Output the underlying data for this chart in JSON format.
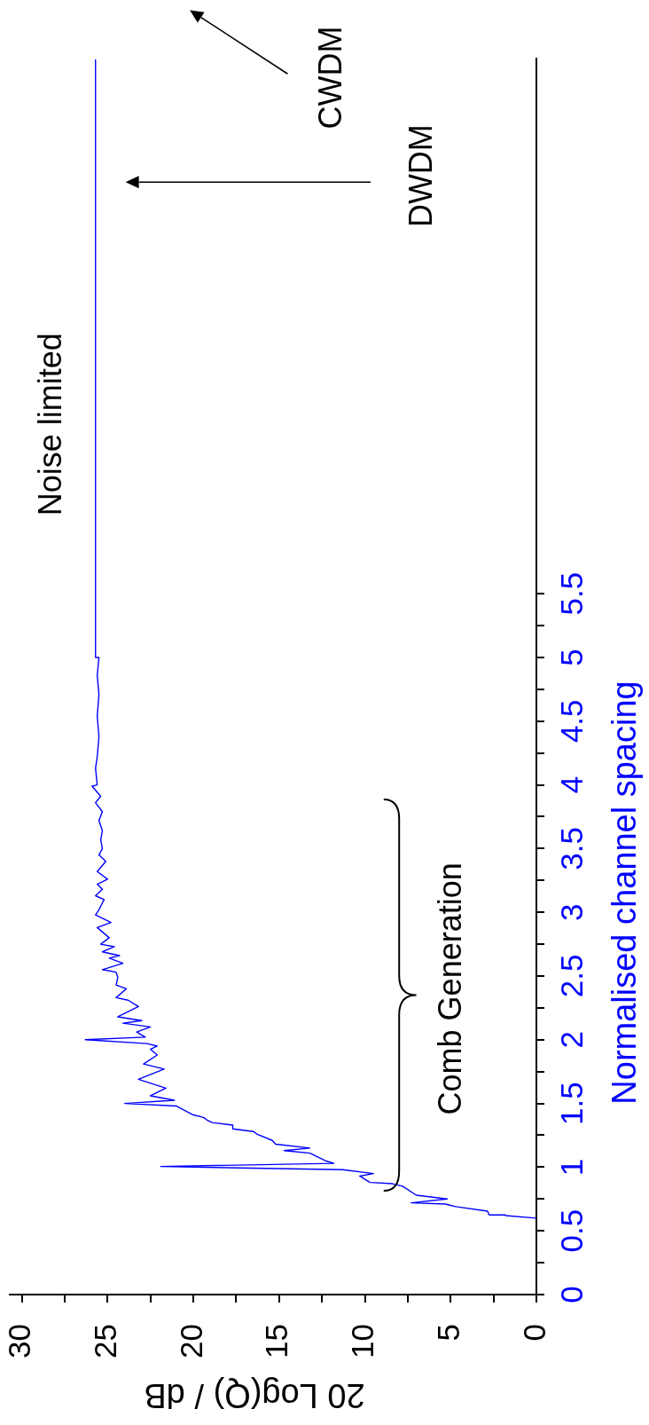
{
  "chart_data": {
    "type": "line",
    "xlabel": "20 Log(Q) / dB",
    "ylabel": "Normalised channel spacing",
    "x": [
      0,
      1.8,
      2.75,
      2.85,
      4.7,
      5.3,
      7.3,
      5.2,
      7.0,
      7.8,
      8.4,
      9.7,
      10.3,
      9.5,
      11.3,
      21.9,
      11.8,
      12.3,
      13.2,
      14.7,
      13.2,
      15.2,
      15.4,
      16.3,
      16.5,
      17.7,
      17.7,
      18.9,
      19.2,
      19.4,
      20.0,
      21.0,
      24.0,
      21.1,
      22.5,
      21.6,
      23.2,
      21.7,
      22.9,
      22.1,
      22.5,
      22.1,
      22.7,
      26.3,
      22.8,
      23.3,
      22.5,
      24.1,
      23.0,
      24.4,
      23.2,
      23.8,
      24.5,
      23.9,
      24.5,
      24.4,
      24.5,
      25.3,
      24.1,
      24.9,
      24.3,
      25.3,
      24.6,
      25.4,
      24.9,
      25.6,
      24.8,
      25.7,
      25.5,
      25.2,
      25.7,
      25.3,
      25.6,
      25.0,
      25.6,
      25.1,
      25.5,
      25.3,
      25.4,
      25.3,
      25.5,
      25.3,
      25.7,
      25.4,
      25.9,
      25.6,
      25.7,
      25.6,
      25.5,
      25.6,
      25.5,
      25.6,
      25.5,
      25.7,
      25.7
    ],
    "series": [
      {
        "color": "#0000ff",
        "values": [
          0.6,
          0.62,
          0.625,
          0.655,
          0.69,
          0.71,
          0.72,
          0.75,
          0.78,
          0.85,
          0.87,
          0.88,
          0.93,
          0.95,
          0.98,
          1.005,
          1.03,
          1.05,
          1.11,
          1.13,
          1.15,
          1.18,
          1.21,
          1.26,
          1.28,
          1.3,
          1.33,
          1.35,
          1.37,
          1.39,
          1.41,
          1.48,
          1.5,
          1.525,
          1.56,
          1.62,
          1.69,
          1.77,
          1.81,
          1.88,
          1.925,
          1.95,
          1.97,
          2.0,
          2.02,
          2.06,
          2.1,
          2.13,
          2.15,
          2.18,
          2.26,
          2.31,
          2.33,
          2.4,
          2.43,
          2.49,
          2.53,
          2.55,
          2.6,
          2.64,
          2.66,
          2.69,
          2.73,
          2.75,
          2.8,
          2.88,
          2.92,
          2.98,
          3.02,
          3.1,
          3.13,
          3.18,
          3.22,
          3.26,
          3.32,
          3.4,
          3.45,
          3.5,
          3.57,
          3.64,
          3.72,
          3.79,
          3.86,
          3.91,
          3.99,
          4.0,
          4.13,
          4.22,
          4.38,
          4.54,
          4.71,
          4.86,
          5.0,
          5.0,
          9.69
        ]
      }
    ],
    "xlim": [
      30.7,
      0
    ],
    "ylim": [
      0,
      9.7
    ],
    "xticks": [
      0,
      {
        "value": 2.5,
        "label": null
      },
      5,
      {
        "value": 7.5,
        "label": null
      },
      10,
      {
        "value": 12.5,
        "label": null
      },
      15,
      {
        "value": 17.5,
        "label": null
      },
      20,
      {
        "value": 22.5,
        "label": null
      },
      25,
      {
        "value": 27.5,
        "label": null
      },
      30
    ],
    "yticks": [
      0,
      {
        "value": 0.25,
        "label": null
      },
      0.5,
      {
        "value": 0.75,
        "label": null
      },
      1,
      {
        "value": 1.25,
        "label": null
      },
      1.5,
      {
        "value": 1.75,
        "label": null
      },
      2,
      {
        "value": 2.25,
        "label": null
      },
      2.5,
      {
        "value": 2.75,
        "label": null
      },
      3,
      {
        "value": 3.25,
        "label": null
      },
      3.5,
      {
        "value": 3.75,
        "label": null
      },
      4,
      {
        "value": 4.25,
        "label": null
      },
      4.5,
      {
        "value": 4.75,
        "label": null
      },
      5,
      {
        "value": 5.25,
        "label": null
      },
      5.5
    ],
    "marker": "none",
    "annotations": [
      "Noise limited",
      "Comb Generation",
      "DWDM",
      "CWDM"
    ]
  }
}
